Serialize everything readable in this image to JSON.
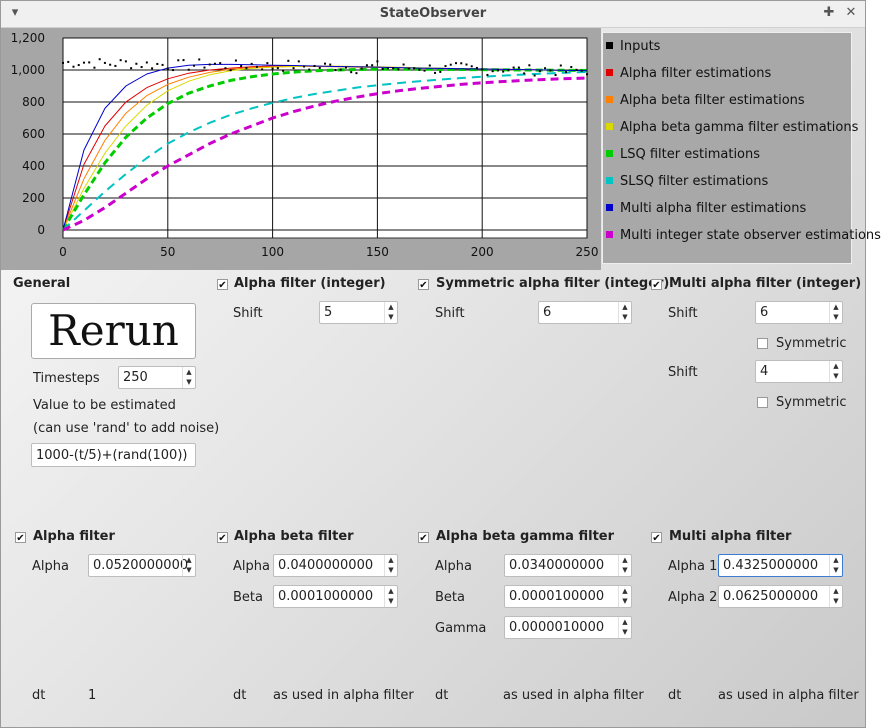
{
  "window": {
    "title": "StateObserver"
  },
  "chart_data": {
    "type": "line",
    "xlim": [
      0,
      250
    ],
    "ylim": [
      -50,
      1200
    ],
    "x_ticks": [
      "0",
      "50",
      "100",
      "150",
      "200",
      "250"
    ],
    "y_ticks": [
      "0",
      "200",
      "400",
      "600",
      "800",
      "1,000",
      "1,200"
    ],
    "grid": true,
    "legend_placement": "right",
    "x": [
      0,
      10,
      20,
      30,
      40,
      50,
      60,
      70,
      80,
      90,
      100,
      110,
      120,
      130,
      140,
      150,
      160,
      170,
      180,
      190,
      200,
      210,
      220,
      230,
      240,
      250
    ],
    "inputs_y": [
      1045,
      1050,
      1038,
      1043,
      1035,
      1032,
      1028,
      1040,
      1022,
      1035,
      1020,
      1030,
      1018,
      1025,
      1012,
      1022,
      1008,
      1018,
      1004,
      1012,
      1000,
      1010,
      995,
      1005,
      990,
      1000
    ],
    "series": [
      {
        "name": "Inputs",
        "color": "#000000",
        "style": "dots"
      },
      {
        "name": "Alpha filter estimations",
        "color": "#e00000",
        "width": 1,
        "values": [
          0,
          410,
          650,
          800,
          890,
          945,
          980,
          1000,
          1012,
          1020,
          1025,
          1025,
          1024,
          1022,
          1020,
          1018,
          1015,
          1012,
          1010,
          1008,
          1006,
          1004,
          1002,
          1000,
          998,
          996
        ]
      },
      {
        "name": "Alpha beta filter estimations",
        "color": "#ff8000",
        "width": 1,
        "values": [
          0,
          320,
          560,
          730,
          840,
          910,
          955,
          985,
          1005,
          1015,
          1020,
          1022,
          1022,
          1020,
          1018,
          1016,
          1014,
          1012,
          1010,
          1008,
          1006,
          1004,
          1002,
          1000,
          998,
          996
        ]
      },
      {
        "name": "Alpha beta gamma filter estimations",
        "color": "#d9d900",
        "width": 1,
        "values": [
          0,
          260,
          480,
          650,
          780,
          870,
          930,
          970,
          995,
          1010,
          1018,
          1022,
          1024,
          1024,
          1022,
          1020,
          1017,
          1014,
          1011,
          1008,
          1005,
          1003,
          1001,
          999,
          997,
          995
        ]
      },
      {
        "name": "LSQ filter estimations",
        "color": "#00cc00",
        "width": 3,
        "dash": "7,4",
        "values": [
          0,
          220,
          420,
          580,
          700,
          790,
          855,
          900,
          935,
          958,
          975,
          987,
          995,
          1000,
          1003,
          1005,
          1005,
          1005,
          1004,
          1003,
          1002,
          1001,
          1000,
          999,
          998,
          997
        ]
      },
      {
        "name": "SLSQ filter estimations",
        "color": "#00c4c4",
        "width": 2,
        "dash": "9,6",
        "values": [
          0,
          120,
          240,
          350,
          450,
          540,
          610,
          670,
          720,
          760,
          795,
          825,
          850,
          870,
          890,
          905,
          918,
          930,
          940,
          950,
          958,
          965,
          972,
          978,
          983,
          988
        ]
      },
      {
        "name": "Multi alpha filter estimations",
        "color": "#0000cc",
        "width": 1,
        "values": [
          0,
          500,
          760,
          900,
          975,
          1012,
          1030,
          1035,
          1035,
          1033,
          1030,
          1028,
          1025,
          1022,
          1020,
          1018,
          1015,
          1012,
          1010,
          1008,
          1006,
          1004,
          1002,
          1000,
          998,
          996
        ]
      },
      {
        "name": "Multi integer state observer estimations",
        "color": "#cc00cc",
        "width": 3,
        "dash": "8,5",
        "values": [
          0,
          60,
          140,
          230,
          320,
          400,
          470,
          540,
          600,
          650,
          700,
          740,
          775,
          805,
          830,
          852,
          870,
          885,
          898,
          910,
          920,
          928,
          935,
          941,
          946,
          950
        ]
      }
    ]
  },
  "general": {
    "heading": "General",
    "rerun_label": "Rerun",
    "timesteps_label": "Timesteps",
    "timesteps_value": "250",
    "estimate_label": "Value to be estimated",
    "estimate_hint": "(can use 'rand' to add noise)",
    "expression_value": "1000-(t/5)+(rand(100))"
  },
  "int_alpha": {
    "heading": "Alpha filter (integer)",
    "shift_label": "Shift",
    "shift_value": "5"
  },
  "int_sym_alpha": {
    "heading": "Symmetric alpha filter (integer)",
    "shift_label": "Shift",
    "shift_value": "6"
  },
  "int_multi_alpha": {
    "heading": "Multi alpha filter (integer)",
    "shift1_label": "Shift",
    "shift1_value": "6",
    "symmetric1_label": "Symmetric",
    "shift2_label": "Shift",
    "shift2_value": "4",
    "symmetric2_label": "Symmetric"
  },
  "alpha_filter": {
    "heading": "Alpha filter",
    "alpha_label": "Alpha",
    "alpha_value": "0.0520000000",
    "dt_label": "dt",
    "dt_value": "1"
  },
  "alpha_beta_filter": {
    "heading": "Alpha beta filter",
    "alpha_label": "Alpha",
    "alpha_value": "0.0400000000",
    "beta_label": "Beta",
    "beta_value": "0.0001000000",
    "dt_label": "dt",
    "dt_value": "as used in alpha filter"
  },
  "abg_filter": {
    "heading": "Alpha beta gamma filter",
    "alpha_label": "Alpha",
    "alpha_value": "0.0340000000",
    "beta_label": "Beta",
    "beta_value": "0.0000100000",
    "gamma_label": "Gamma",
    "gamma_value": "0.0000010000",
    "dt_label": "dt",
    "dt_value": "as used in alpha filter"
  },
  "multi_alpha_filter": {
    "heading": "Multi alpha filter",
    "alpha1_label": "Alpha 1",
    "alpha1_value": "0.4325000000",
    "alpha2_label": "Alpha 2",
    "alpha2_value": "0.0625000000",
    "dt_label": "dt",
    "dt_value": "as used in alpha filter"
  }
}
